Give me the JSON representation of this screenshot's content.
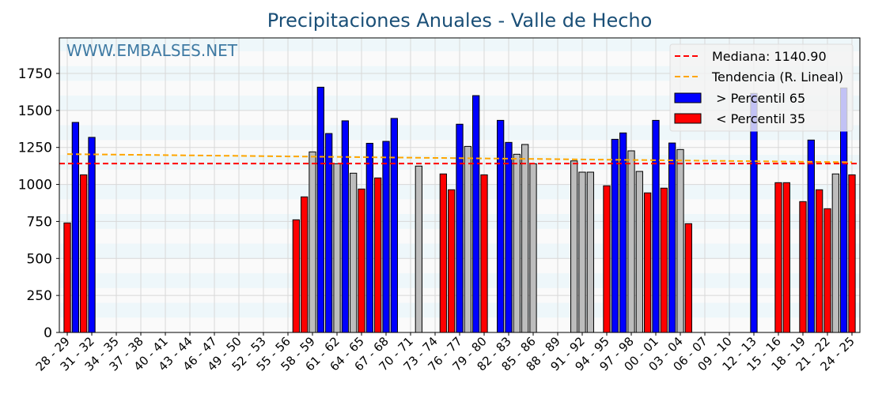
{
  "chart_data": {
    "type": "bar",
    "title": "Precipitaciones Anuales - Valle de Hecho",
    "watermark": "WWW.EMBALSES.NET",
    "xlabel": "",
    "ylabel": "",
    "ylim": [
      0,
      1990
    ],
    "yticks": [
      0,
      250,
      500,
      750,
      1000,
      1250,
      1500,
      1750
    ],
    "tick_labels": [
      "28 - 29",
      "31 - 32",
      "34 - 35",
      "37 - 38",
      "40 - 41",
      "43 - 44",
      "46 - 47",
      "49 - 50",
      "52 - 53",
      "55 - 56",
      "58 - 59",
      "61 - 62",
      "64 - 65",
      "67 - 68",
      "70 - 71",
      "73 - 74",
      "76 - 77",
      "79 - 80",
      "82 - 83",
      "85 - 86",
      "88 - 89",
      "91 - 92",
      "94 - 95",
      "97 - 98",
      "00 - 01",
      "03 - 04",
      "06 - 07",
      "09 - 10",
      "12 - 13",
      "15 - 16",
      "18 - 19",
      "21 - 22",
      "24 - 25"
    ],
    "start_year": 1928,
    "values": [
      740,
      1419,
      1065,
      1318,
      null,
      null,
      null,
      null,
      null,
      null,
      null,
      null,
      null,
      null,
      null,
      null,
      null,
      null,
      null,
      null,
      null,
      null,
      null,
      null,
      null,
      null,
      null,
      null,
      761,
      916,
      1220,
      1657,
      1344,
      1140,
      1430,
      1076,
      969,
      1278,
      1044,
      1291,
      1446,
      null,
      null,
      1124,
      null,
      null,
      1071,
      964,
      1407,
      1257,
      1600,
      1065,
      null,
      1433,
      1284,
      1204,
      1270,
      1140,
      null,
      null,
      null,
      null,
      1159,
      1083,
      1083,
      null,
      991,
      1305,
      1348,
      1227,
      1088,
      943,
      1433,
      975,
      1280,
      1236,
      735,
      null,
      null,
      null,
      null,
      null,
      null,
      null,
      1615,
      null,
      null,
      1012,
      1012,
      null,
      884,
      1300,
      964,
      836,
      1071,
      1652,
      1065
    ],
    "classes": [
      "low",
      "high",
      "low",
      "high",
      null,
      null,
      null,
      null,
      null,
      null,
      null,
      null,
      null,
      null,
      null,
      null,
      null,
      null,
      null,
      null,
      null,
      null,
      null,
      null,
      null,
      null,
      null,
      null,
      "low",
      "low",
      "mid",
      "high",
      "high",
      "mid",
      "high",
      "mid",
      "low",
      "high",
      "low",
      "high",
      "high",
      null,
      null,
      "mid",
      null,
      null,
      "low",
      "low",
      "high",
      "mid",
      "high",
      "low",
      null,
      "high",
      "high",
      "mid",
      "mid",
      "mid",
      null,
      null,
      null,
      null,
      "mid",
      "mid",
      "mid",
      null,
      "low",
      "high",
      "high",
      "mid",
      "mid",
      "low",
      "high",
      "low",
      "high",
      "mid",
      "low",
      null,
      null,
      null,
      null,
      null,
      null,
      null,
      "high",
      null,
      null,
      "low",
      "low",
      null,
      "low",
      "high",
      "low",
      "low",
      "mid",
      "high",
      "low"
    ],
    "median": 1140.9,
    "trend": {
      "start": 1205,
      "end": 1150
    },
    "legend": {
      "placement": "top-right",
      "median_label": "Mediana: 1140.90",
      "trend_label": "Tendencia (R. Lineal)",
      "high_label": " > Percentil 65",
      "low_label": " < Percentil 35"
    },
    "colors": {
      "high": "#0000ff",
      "low": "#ff0000",
      "mid": "#bdbdbd",
      "median": "#ff0000",
      "trend": "#ffa500",
      "title": "#1a4f77",
      "watermark": "#3f7aa3",
      "stripe": "#eef7fa"
    }
  }
}
